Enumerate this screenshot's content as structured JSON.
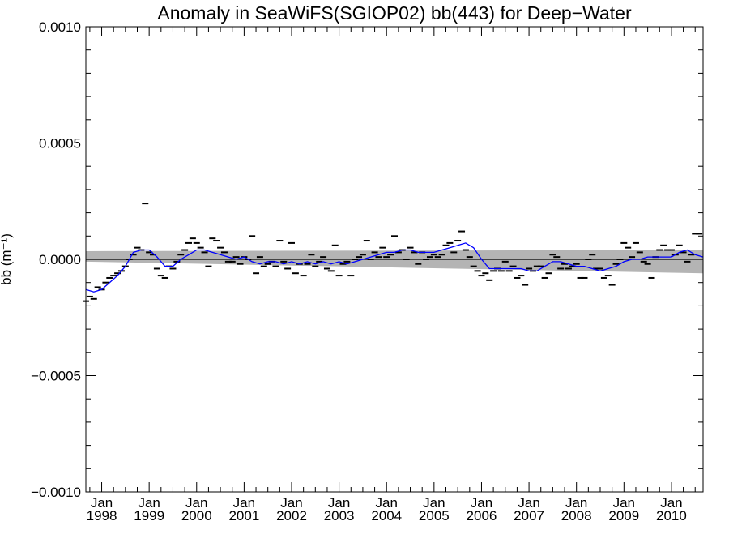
{
  "chart_data": {
    "type": "scatter",
    "title": "Anomaly in SeaWiFS(SGIOP02) bb(443) for Deep−Water",
    "ylabel": "bb (m⁻¹)",
    "xlabel": "",
    "ylim": [
      -0.001,
      0.001
    ],
    "xlim": [
      "1997-09",
      "2010-09"
    ],
    "y_ticks": [
      {
        "value": 0.001,
        "label": "0.0010"
      },
      {
        "value": 0.0005,
        "label": "0.0005"
      },
      {
        "value": 0.0,
        "label": "0.0000"
      },
      {
        "value": -0.0005,
        "label": "−0.0005"
      },
      {
        "value": -0.001,
        "label": "−0.0010"
      }
    ],
    "x_ticks": [
      {
        "value": "1998-01",
        "month": "Jan",
        "year": "1998"
      },
      {
        "value": "1999-01",
        "month": "Jan",
        "year": "1999"
      },
      {
        "value": "2000-01",
        "month": "Jan",
        "year": "2000"
      },
      {
        "value": "2001-01",
        "month": "Jan",
        "year": "2001"
      },
      {
        "value": "2002-01",
        "month": "Jan",
        "year": "2002"
      },
      {
        "value": "2003-01",
        "month": "Jan",
        "year": "2003"
      },
      {
        "value": "2004-01",
        "month": "Jan",
        "year": "2004"
      },
      {
        "value": "2005-01",
        "month": "Jan",
        "year": "2005"
      },
      {
        "value": "2006-01",
        "month": "Jan",
        "year": "2006"
      },
      {
        "value": "2007-01",
        "month": "Jan",
        "year": "2007"
      },
      {
        "value": "2008-01",
        "month": "Jan",
        "year": "2008"
      },
      {
        "value": "2009-01",
        "month": "Jan",
        "year": "2009"
      },
      {
        "value": "2010-01",
        "month": "Jan",
        "year": "2010"
      }
    ],
    "confidence_band": {
      "x": [
        "1997-09",
        "2010-09"
      ],
      "upper": [
        3.5e-05,
        4e-05
      ],
      "lower": [
        -1e-05,
        -6e-05
      ],
      "color": "#b4b4b4"
    },
    "zero_line": {
      "y": 0.0,
      "color": "#000000"
    },
    "series": [
      {
        "kind": "monthly_anomaly_marks",
        "color": "#000000",
        "x": [
          "1997-09",
          "1997-10",
          "1997-11",
          "1997-12",
          "1998-01",
          "1998-02",
          "1998-03",
          "1998-04",
          "1998-05",
          "1998-06",
          "1998-07",
          "1998-08",
          "1998-09",
          "1998-10",
          "1998-11",
          "1998-12",
          "1999-01",
          "1999-02",
          "1999-03",
          "1999-04",
          "1999-05",
          "1999-06",
          "1999-07",
          "1999-08",
          "1999-09",
          "1999-10",
          "1999-11",
          "1999-12",
          "2000-01",
          "2000-02",
          "2000-03",
          "2000-04",
          "2000-05",
          "2000-06",
          "2000-07",
          "2000-08",
          "2000-09",
          "2000-10",
          "2000-11",
          "2000-12",
          "2001-01",
          "2001-02",
          "2001-03",
          "2001-04",
          "2001-05",
          "2001-06",
          "2001-07",
          "2001-08",
          "2001-09",
          "2001-10",
          "2001-11",
          "2001-12",
          "2002-01",
          "2002-02",
          "2002-03",
          "2002-04",
          "2002-05",
          "2002-06",
          "2002-07",
          "2002-08",
          "2002-09",
          "2002-10",
          "2002-11",
          "2002-12",
          "2003-01",
          "2003-02",
          "2003-03",
          "2003-04",
          "2003-05",
          "2003-06",
          "2003-07",
          "2003-08",
          "2003-09",
          "2003-10",
          "2003-11",
          "2003-12",
          "2004-01",
          "2004-02",
          "2004-03",
          "2004-04",
          "2004-05",
          "2004-06",
          "2004-07",
          "2004-08",
          "2004-09",
          "2004-10",
          "2004-11",
          "2004-12",
          "2005-01",
          "2005-02",
          "2005-03",
          "2005-04",
          "2005-05",
          "2005-06",
          "2005-07",
          "2005-08",
          "2005-09",
          "2005-10",
          "2005-11",
          "2005-12",
          "2006-01",
          "2006-02",
          "2006-03",
          "2006-04",
          "2006-05",
          "2006-06",
          "2006-07",
          "2006-08",
          "2006-09",
          "2006-10",
          "2006-11",
          "2006-12",
          "2007-01",
          "2007-02",
          "2007-03",
          "2007-04",
          "2007-05",
          "2007-06",
          "2007-07",
          "2007-08",
          "2007-09",
          "2007-10",
          "2007-11",
          "2007-12",
          "2008-01",
          "2008-02",
          "2008-03",
          "2008-04",
          "2008-05",
          "2008-06",
          "2008-07",
          "2008-08",
          "2008-09",
          "2008-10",
          "2008-11",
          "2008-12",
          "2009-01",
          "2009-02",
          "2009-03",
          "2009-04",
          "2009-05",
          "2009-06",
          "2009-07",
          "2009-08",
          "2009-09",
          "2009-10",
          "2009-11",
          "2009-12",
          "2010-01",
          "2010-02",
          "2010-03",
          "2010-04",
          "2010-05",
          "2010-06",
          "2010-07",
          "2010-08"
        ],
        "values": [
          -0.00018,
          -0.00016,
          -0.00017,
          -0.00012,
          -0.00013,
          -0.0001,
          -8e-05,
          -7e-05,
          -6e-05,
          -5e-05,
          -3e-05,
          0.0,
          2e-05,
          5e-05,
          4e-05,
          0.00024,
          3e-05,
          2e-05,
          -4e-05,
          -7e-05,
          -8e-05,
          -3e-05,
          -4e-05,
          -1e-05,
          2e-05,
          4e-05,
          7e-05,
          9e-05,
          7e-05,
          5e-05,
          3e-05,
          -3e-05,
          9e-05,
          8e-05,
          5e-05,
          3e-05,
          -1e-05,
          -1e-05,
          1e-05,
          -2e-05,
          1e-05,
          0.0,
          0.0001,
          -6e-05,
          1e-05,
          -3e-05,
          -2e-05,
          -1e-05,
          -3e-05,
          8e-05,
          -1e-05,
          -4e-05,
          7e-05,
          -6e-05,
          -2e-05,
          -7e-05,
          -2e-05,
          2e-05,
          -3e-05,
          -1e-05,
          1e-05,
          -4e-05,
          -5e-05,
          6e-05,
          -7e-05,
          -2e-05,
          -1e-05,
          -7e-05,
          0.0,
          1e-05,
          2e-05,
          8e-05,
          0.0,
          3e-05,
          1e-05,
          5e-05,
          1e-05,
          2e-05,
          0.0001,
          3e-05,
          4e-05,
          0.0,
          5e-05,
          3e-05,
          -2e-05,
          3e-05,
          0.0,
          1e-05,
          2e-05,
          1e-05,
          2e-05,
          6e-05,
          7e-05,
          3e-05,
          8e-05,
          0.00012,
          4e-05,
          1e-05,
          -3e-05,
          -5e-05,
          -7e-05,
          -6e-05,
          -9e-05,
          -5e-05,
          -4e-05,
          -5e-05,
          -1e-05,
          -5e-05,
          -3e-05,
          -8e-05,
          -7e-05,
          -0.00011,
          -4e-05,
          -5e-05,
          -3e-05,
          -3e-05,
          -8e-05,
          -6e-05,
          2e-05,
          1e-05,
          -4e-05,
          -2e-05,
          -4e-05,
          -3e-05,
          -2e-05,
          -8e-05,
          -8e-05,
          0.0,
          2e-05,
          -4e-05,
          -4e-05,
          -8e-05,
          -7e-05,
          -0.00011,
          -2e-05,
          0.0,
          7e-05,
          5e-05,
          1e-05,
          7e-05,
          3e-05,
          -1e-05,
          -2e-05,
          -8e-05,
          1e-05,
          4e-05,
          6e-05,
          4e-05,
          4e-05,
          2e-05,
          6e-05,
          3e-05,
          -1e-05,
          2e-05,
          0.00011,
          0.00011
        ]
      },
      {
        "kind": "running_mean_line",
        "color": "#0000ff",
        "x": [
          "1997-09",
          "1997-11",
          "1998-01",
          "1998-03",
          "1998-05",
          "1998-07",
          "1998-09",
          "1998-11",
          "1999-01",
          "1999-03",
          "1999-05",
          "1999-07",
          "1999-09",
          "1999-11",
          "2000-01",
          "2000-03",
          "2000-05",
          "2000-07",
          "2000-09",
          "2000-11",
          "2001-01",
          "2001-03",
          "2001-05",
          "2001-07",
          "2001-09",
          "2001-11",
          "2002-01",
          "2002-03",
          "2002-05",
          "2002-07",
          "2002-09",
          "2002-11",
          "2003-01",
          "2003-03",
          "2003-05",
          "2003-07",
          "2003-09",
          "2003-11",
          "2004-01",
          "2004-03",
          "2004-05",
          "2004-07",
          "2004-09",
          "2004-11",
          "2005-01",
          "2005-03",
          "2005-05",
          "2005-07",
          "2005-09",
          "2005-11",
          "2006-01",
          "2006-03",
          "2006-05",
          "2006-07",
          "2006-09",
          "2006-11",
          "2007-01",
          "2007-03",
          "2007-05",
          "2007-07",
          "2007-09",
          "2007-11",
          "2008-01",
          "2008-03",
          "2008-05",
          "2008-07",
          "2008-09",
          "2008-11",
          "2009-01",
          "2009-03",
          "2009-05",
          "2009-07",
          "2009-09",
          "2009-11",
          "2010-01",
          "2010-03",
          "2010-05",
          "2010-07",
          "2010-09"
        ],
        "values": [
          -0.00013,
          -0.00014,
          -0.00013,
          -0.0001,
          -7e-05,
          -3e-05,
          3e-05,
          4e-05,
          4e-05,
          1e-05,
          -3e-05,
          -3e-05,
          0.0,
          2e-05,
          4e-05,
          4e-05,
          3e-05,
          2e-05,
          1e-05,
          0.0,
          1e-05,
          -1e-05,
          -2e-05,
          -1e-05,
          -1e-05,
          -2e-05,
          -1e-05,
          -2e-05,
          -1e-05,
          -2e-05,
          -1e-05,
          -2e-05,
          -1e-05,
          -2e-05,
          -1e-05,
          0.0,
          1e-05,
          2e-05,
          3e-05,
          3e-05,
          4e-05,
          4e-05,
          3e-05,
          3e-05,
          3e-05,
          4e-05,
          5e-05,
          6e-05,
          7e-05,
          5e-05,
          0.0,
          -4e-05,
          -4e-05,
          -4e-05,
          -4e-05,
          -4e-05,
          -5e-05,
          -5e-05,
          -3e-05,
          -1e-05,
          -1e-05,
          -2e-05,
          -3e-05,
          -3e-05,
          -4e-05,
          -5e-05,
          -4e-05,
          -3e-05,
          -1e-05,
          0.0,
          0.0,
          1e-05,
          1e-05,
          1e-05,
          1e-05,
          3e-05,
          4e-05,
          2e-05,
          1e-05
        ]
      }
    ]
  }
}
